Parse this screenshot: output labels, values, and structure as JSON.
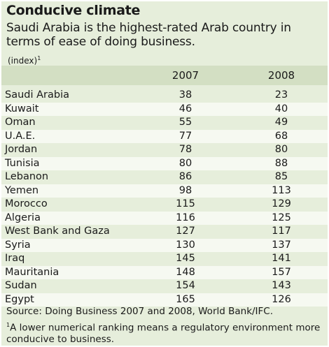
{
  "title": "Conducive climate",
  "subtitle": "Saudi Arabia is the highest-rated Arab country in terms of ease of doing business.",
  "unit_label": "(index)",
  "unit_footnote_mark": "1",
  "source": "Source: Doing Business 2007 and 2008, World Bank/IFC.",
  "footnote_mark": "1",
  "footnote": "A lower numerical ranking means a regulatory environment more conducive to business.",
  "colors": {
    "panel": "#e6eedb",
    "header_band": "#d3dfc3",
    "alt_row": "#f6f9f1"
  },
  "chart_data": {
    "type": "table",
    "columns": [
      "2007",
      "2008"
    ],
    "rows": [
      {
        "country": "Saudi Arabia",
        "v2007": "38",
        "v2008": "23"
      },
      {
        "country": "Kuwait",
        "v2007": "46",
        "v2008": "40"
      },
      {
        "country": "Oman",
        "v2007": "55",
        "v2008": "49"
      },
      {
        "country": "U.A.E.",
        "v2007": "77",
        "v2008": "68"
      },
      {
        "country": "Jordan",
        "v2007": "78",
        "v2008": "80"
      },
      {
        "country": "Tunisia",
        "v2007": "80",
        "v2008": "88"
      },
      {
        "country": "Lebanon",
        "v2007": "86",
        "v2008": "85"
      },
      {
        "country": "Yemen",
        "v2007": "98",
        "v2008": "113"
      },
      {
        "country": "Morocco",
        "v2007": "115",
        "v2008": "129"
      },
      {
        "country": "Algeria",
        "v2007": "116",
        "v2008": "125"
      },
      {
        "country": "West Bank and Gaza",
        "v2007": "127",
        "v2008": "117"
      },
      {
        "country": "Syria",
        "v2007": "130",
        "v2008": "137"
      },
      {
        "country": "Iraq",
        "v2007": "145",
        "v2008": "141"
      },
      {
        "country": "Mauritania",
        "v2007": "148",
        "v2008": "157"
      },
      {
        "country": "Sudan",
        "v2007": "154",
        "v2008": "143"
      },
      {
        "country": "Egypt",
        "v2007": "165",
        "v2008": "126"
      }
    ]
  }
}
